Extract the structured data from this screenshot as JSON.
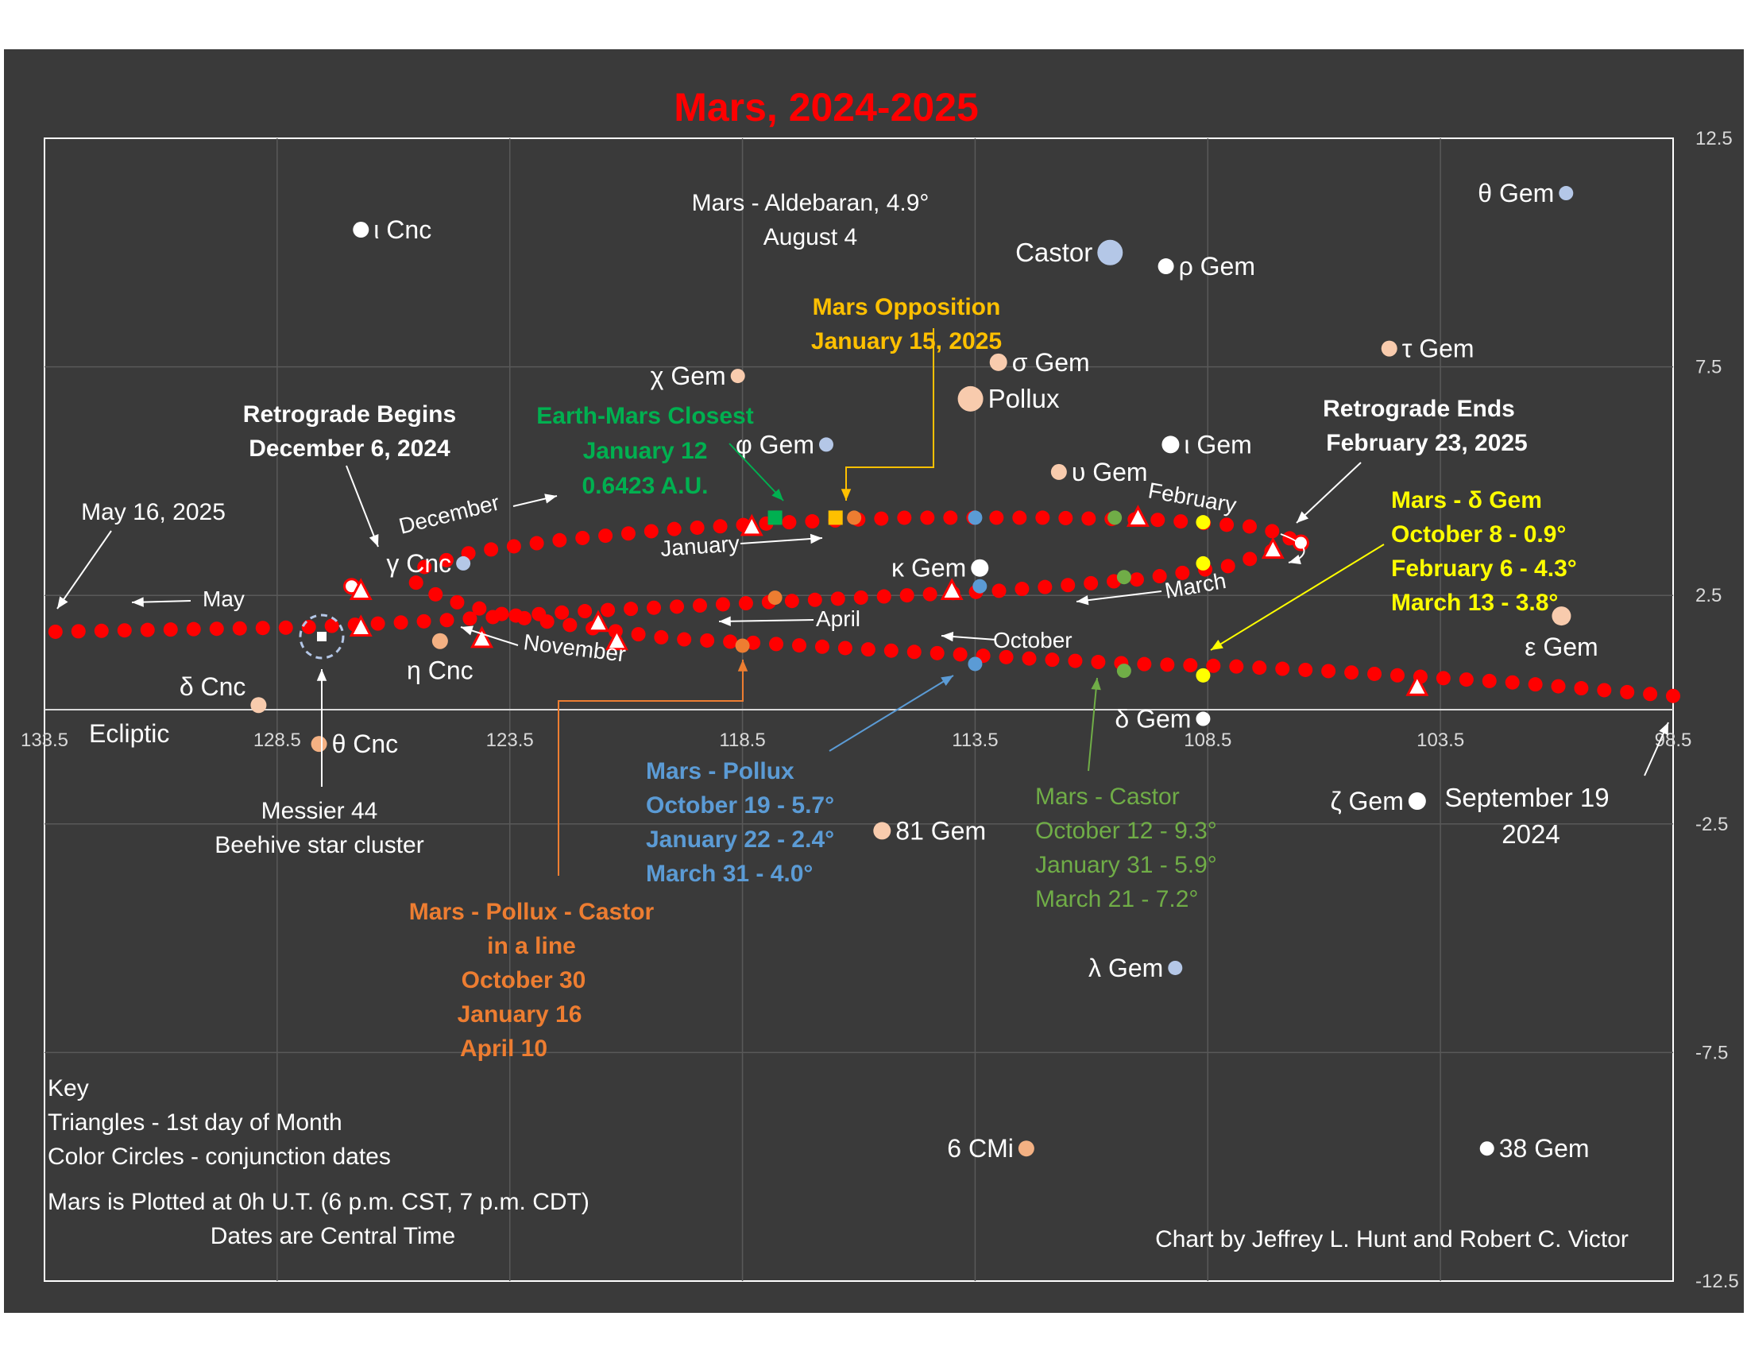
{
  "chart_data": {
    "type": "scatter",
    "title": "Mars,  2024-2025",
    "colors": {
      "background": "#3a3a3a",
      "plot_border": "#ffffff",
      "mars_path": "#ff0000",
      "title": "#ff0000",
      "opposition": "#ffc000",
      "closest": "#00b050",
      "pollux_conj": "#5b9bd5",
      "castor_conj": "#70ad47",
      "delta_gem_conj": "#ffff00",
      "line_up": "#ed7d31",
      "star_white": "#ffffff",
      "star_blue": "#b4c7e7",
      "star_orange": "#f4b183",
      "star_peach": "#f8cbad"
    },
    "x_axis": {
      "reversed": true,
      "range": [
        133.5,
        98.5
      ],
      "ticks": [
        "133.5",
        "128.5",
        "123.5",
        "118.5",
        "113.5",
        "108.5",
        "103.5",
        "98.5"
      ],
      "grid": true
    },
    "y_axis": {
      "position": "right",
      "range": [
        -12.5,
        12.5
      ],
      "ticks": [
        "12.5",
        "7.5",
        "2.5",
        "-2.5",
        "-7.5",
        "-12.5"
      ],
      "grid": true
    },
    "mars_path": [
      [
        98.5,
        0.3
      ],
      [
        102.0,
        0.6
      ],
      [
        106.0,
        0.85
      ],
      [
        108.0,
        0.95
      ],
      [
        110.0,
        1.0
      ],
      [
        112.0,
        1.1
      ],
      [
        114.0,
        1.22
      ],
      [
        116.0,
        1.33
      ],
      [
        118.0,
        1.45
      ],
      [
        120.0,
        1.55
      ],
      [
        122.0,
        1.82
      ],
      [
        123.5,
        2.05
      ],
      [
        124.5,
        2.3
      ],
      [
        125.3,
        2.6
      ],
      [
        125.6,
        2.85
      ],
      [
        125.4,
        3.1
      ],
      [
        124.3,
        3.45
      ],
      [
        122.5,
        3.7
      ],
      [
        120.0,
        3.95
      ],
      [
        117.5,
        4.1
      ],
      [
        115.0,
        4.2
      ],
      [
        112.0,
        4.2
      ],
      [
        109.5,
        4.15
      ],
      [
        107.5,
        4.0
      ],
      [
        106.7,
        3.8
      ],
      [
        106.9,
        3.55
      ],
      [
        108.0,
        3.15
      ],
      [
        110.0,
        2.85
      ],
      [
        113.0,
        2.6
      ],
      [
        116.0,
        2.45
      ],
      [
        119.0,
        2.3
      ],
      [
        122.0,
        2.15
      ],
      [
        125.0,
        1.95
      ],
      [
        128.0,
        1.8
      ],
      [
        131.0,
        1.75
      ],
      [
        133.5,
        1.7
      ]
    ],
    "month_markers": [
      [
        124.1,
        1.55
      ],
      [
        121.2,
        1.5
      ],
      [
        121.6,
        1.9
      ],
      [
        126.7,
        1.8
      ],
      [
        126.7,
        2.6
      ],
      [
        110.0,
        4.2
      ],
      [
        118.3,
        4.0
      ],
      [
        107.1,
        3.5
      ],
      [
        114.0,
        2.6
      ],
      [
        104.0,
        0.5
      ]
    ],
    "conjunction_markers": [
      {
        "x": 117.8,
        "y": 4.2,
        "color": "#00b050",
        "shape": "square"
      },
      {
        "x": 116.5,
        "y": 4.2,
        "color": "#ffc000",
        "shape": "square"
      },
      {
        "x": 116.1,
        "y": 4.2,
        "color": "#ed7d31",
        "shape": "circle"
      },
      {
        "x": 113.5,
        "y": 4.2,
        "color": "#5b9bd5",
        "shape": "circle"
      },
      {
        "x": 110.5,
        "y": 4.2,
        "color": "#70ad47",
        "shape": "circle"
      },
      {
        "x": 108.6,
        "y": 4.1,
        "color": "#ffff00",
        "shape": "circle"
      },
      {
        "x": 108.6,
        "y": 3.2,
        "color": "#ffff00",
        "shape": "circle"
      },
      {
        "x": 110.3,
        "y": 2.9,
        "color": "#70ad47",
        "shape": "circle"
      },
      {
        "x": 113.4,
        "y": 2.7,
        "color": "#5b9bd5",
        "shape": "circle"
      },
      {
        "x": 117.8,
        "y": 2.45,
        "color": "#ed7d31",
        "shape": "circle"
      },
      {
        "x": 118.5,
        "y": 1.4,
        "color": "#ed7d31",
        "shape": "circle"
      },
      {
        "x": 113.5,
        "y": 1.0,
        "color": "#5b9bd5",
        "shape": "circle"
      },
      {
        "x": 110.3,
        "y": 0.85,
        "color": "#70ad47",
        "shape": "circle"
      },
      {
        "x": 108.6,
        "y": 0.75,
        "color": "#ffff00",
        "shape": "circle"
      }
    ],
    "turning_points": [
      {
        "x": 126.9,
        "y": 2.7
      },
      {
        "x": 106.5,
        "y": 3.65
      }
    ],
    "stars": [
      {
        "name": "ι Cnc",
        "x": 126.7,
        "y": 10.5,
        "color": "#ffffff",
        "size": 10
      },
      {
        "name": "γ Cnc",
        "x": 124.5,
        "y": 3.2,
        "color": "#b4c7e7",
        "size": 9
      },
      {
        "name": "δ Cnc",
        "x": 128.9,
        "y": 0.1,
        "color": "#f8cbad",
        "size": 10
      },
      {
        "name": "η Cnc",
        "x": 125.0,
        "y": 1.5,
        "color": "#f4b183",
        "size": 10
      },
      {
        "name": "θ Cnc",
        "x": 127.6,
        "y": -0.75,
        "color": "#f4b183",
        "size": 10
      },
      {
        "name": "χ Gem",
        "x": 118.6,
        "y": 7.3,
        "color": "#f8cbad",
        "size": 9
      },
      {
        "name": "φ Gem",
        "x": 116.7,
        "y": 5.8,
        "color": "#b4c7e7",
        "size": 9
      },
      {
        "name": "σ Gem",
        "x": 113.0,
        "y": 7.6,
        "color": "#f8cbad",
        "size": 11
      },
      {
        "name": "Pollux",
        "x": 113.6,
        "y": 6.8,
        "color": "#f8cbad",
        "size": 16
      },
      {
        "name": "Castor",
        "x": 110.6,
        "y": 10.0,
        "color": "#b4c7e7",
        "size": 16
      },
      {
        "name": "ρ Gem",
        "x": 109.4,
        "y": 9.7,
        "color": "#ffffff",
        "size": 10
      },
      {
        "name": "υ Gem",
        "x": 111.7,
        "y": 5.2,
        "color": "#f8cbad",
        "size": 10
      },
      {
        "name": "ι Gem",
        "x": 109.3,
        "y": 5.8,
        "color": "#ffffff",
        "size": 11
      },
      {
        "name": "τ Gem",
        "x": 104.6,
        "y": 7.9,
        "color": "#f8cbad",
        "size": 10
      },
      {
        "name": "θ Gem",
        "x": 100.8,
        "y": 11.3,
        "color": "#b4c7e7",
        "size": 9
      },
      {
        "name": "κ Gem",
        "x": 113.4,
        "y": 3.1,
        "color": "#ffffff",
        "size": 11
      },
      {
        "name": "ε Gem",
        "x": 100.9,
        "y": 2.05,
        "color": "#f8cbad",
        "size": 12
      },
      {
        "name": "δ Gem",
        "x": 108.6,
        "y": -0.2,
        "color": "#ffffff",
        "size": 9
      },
      {
        "name": "ζ Gem",
        "x": 104.0,
        "y": -2.0,
        "color": "#ffffff",
        "size": 11
      },
      {
        "name": "81 Gem",
        "x": 115.5,
        "y": -2.65,
        "color": "#f8cbad",
        "size": 11
      },
      {
        "name": "λ Gem",
        "x": 109.2,
        "y": -5.65,
        "color": "#b4c7e7",
        "size": 9
      },
      {
        "name": "6 CMi",
        "x": 112.4,
        "y": -9.6,
        "color": "#f4b183",
        "size": 10
      },
      {
        "name": "38 Gem",
        "x": 102.5,
        "y": -9.6,
        "color": "#ffffff",
        "size": 9
      }
    ],
    "labels": {
      "ecliptic": "Ecliptic",
      "messier_1": "Messier 44",
      "messier_2": "Beehive star cluster",
      "aldebaran_1": "Mars - Aldebaran, 4.9°",
      "aldebaran_2": "August 4",
      "opposition_1": "Mars Opposition",
      "opposition_2": "January 15, 2025",
      "closest_1": "Earth-Mars Closest",
      "closest_2": "January 12",
      "closest_3": "0.6423 A.U.",
      "retro_begin_1": "Retrograde Begins",
      "retro_begin_2": "December 6, 2024",
      "retro_end_1": "Retrograde Ends",
      "retro_end_2": "February 23, 2025",
      "delta_gem_1": "Mars - δ Gem",
      "delta_gem_2": "October 8 - 0.9°",
      "delta_gem_3": "February 6 -  4.3°",
      "delta_gem_4": "March 13 - 3.8°",
      "pollux_1": "Mars - Pollux",
      "pollux_2": "October 19 - 5.7°",
      "pollux_3": "January 22 - 2.4°",
      "pollux_4": "March 31 - 4.0°",
      "castor_1": "Mars - Castor",
      "castor_2": "October 12 - 9.3°",
      "castor_3": "January 31 - 5.9°",
      "castor_4": "March 21 - 7.2°",
      "line_1": "Mars - Pollux - Castor",
      "line_2": "in a line",
      "line_3": "October 30",
      "line_4": "January 16",
      "line_5": "April 10",
      "may16": "May 16, 2025",
      "sept19_1": "September 19",
      "sept19_2": "2024",
      "m_may": "May",
      "m_april": "April",
      "m_march": "March",
      "m_february": "February",
      "m_january": "January",
      "m_december": "December",
      "m_november": "November",
      "m_october": "October",
      "key_1": "Key",
      "key_2": "Triangles - 1st day of Month",
      "key_3": "Color Circles -  conjunction dates",
      "key_4": "Mars is Plotted at 0h U.T. (6 p.m. CST, 7 p.m. CDT)",
      "key_5": "Dates are Central Time",
      "credit": "Chart by Jeffrey L. Hunt and Robert C. Victor"
    }
  }
}
